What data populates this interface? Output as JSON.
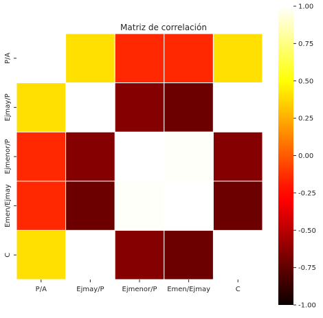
{
  "chart_data": {
    "type": "heatmap",
    "title": "Matriz de correlación",
    "x_categories": [
      "P/A",
      "Ejmay/P",
      "Ejmenor/P",
      "Emen/Ejmay",
      "C"
    ],
    "y_categories": [
      "P/A",
      "Ejmay/P",
      "Ejmenor/P",
      "Emen/Ejmay",
      "C"
    ],
    "values": [
      [
        1.0,
        0.4,
        -0.15,
        -0.15,
        0.4
      ],
      [
        0.4,
        1.0,
        -0.65,
        -0.72,
        1.0
      ],
      [
        -0.15,
        -0.65,
        1.0,
        0.99,
        -0.65
      ],
      [
        -0.15,
        -0.72,
        0.99,
        1.0,
        -0.72
      ],
      [
        0.4,
        1.0,
        -0.65,
        -0.72,
        1.0
      ]
    ],
    "colormap": "hot",
    "vmin": -1.0,
    "vmax": 1.0,
    "colorbar_ticks": [
      "1.00",
      "0.75",
      "0.50",
      "0.25",
      "0.00",
      "-0.25",
      "-0.50",
      "-0.75",
      "-1.00"
    ],
    "cell_border_color": "#ffffff",
    "grid": false
  }
}
